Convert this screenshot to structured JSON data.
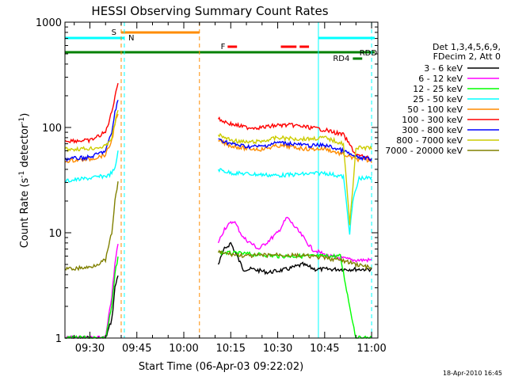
{
  "chart_data": {
    "type": "line",
    "title": "HESSI Observing Summary Count Rates",
    "xlabel": "Start Time (06-Apr-03 09:22:02)",
    "ylabel_main": "Count Rate (s",
    "ylabel_sup1": "-1",
    "ylabel_mid": " detector",
    "ylabel_sup2": "-1",
    "ylabel_end": ")",
    "yscale": "log",
    "ylim": [
      1,
      1000
    ],
    "xlim": [
      "09:22:02",
      "11:02:00"
    ],
    "x_ticks": [
      "09:30",
      "09:45",
      "10:00",
      "10:15",
      "10:30",
      "10:45",
      "11:00"
    ],
    "y_ticks": [
      "1",
      "10",
      "100",
      "1000"
    ],
    "legend_header": [
      "Det 1,3,4,5,6,9,",
      "FDecim 2, Att 0"
    ],
    "footer_date": "18-Apr-2010 16:45",
    "flags": [
      {
        "label": "S",
        "color": "#ff8c00",
        "start": "09:40",
        "end": "10:05"
      },
      {
        "label": "N",
        "color": "#00ffff",
        "start": "09:22",
        "end": "09:41"
      },
      {
        "label": "N",
        "color": "#00ffff",
        "start": "10:43",
        "end": "11:01"
      },
      {
        "label": "F",
        "color": "#ff0000",
        "segments": [
          [
            "10:14",
            "10:17"
          ],
          [
            "10:31",
            "10:36"
          ],
          [
            "10:37",
            "10:40"
          ]
        ]
      },
      {
        "label": "RDD",
        "color": "#008000",
        "start": "09:22",
        "end": "11:01"
      },
      {
        "label": "RD4",
        "color": "#008000",
        "start": "10:54",
        "end": "10:57"
      }
    ],
    "vlines": [
      {
        "time": "09:40",
        "color": "#ff8c00",
        "style": "dashed"
      },
      {
        "time": "10:05",
        "color": "#ff8c00",
        "style": "dashed"
      },
      {
        "time": "09:41",
        "color": "#00ffff",
        "style": "dashed"
      },
      {
        "time": "11:00",
        "color": "#00ffff",
        "style": "dashed"
      },
      {
        "time": "10:43",
        "color": "#00ffff",
        "style": "solid"
      }
    ],
    "series": [
      {
        "name": "3 - 6 keV",
        "color": "#000000",
        "x": [
          "09:22",
          "09:35",
          "09:37",
          "09:38",
          "09:39",
          "10:05",
          "10:11",
          "10:13",
          "10:15",
          "10:19",
          "10:22",
          "10:27",
          "10:33",
          "10:38",
          "10:42",
          "10:46",
          "10:54",
          "11:00"
        ],
        "y": [
          1.0,
          1.0,
          1.5,
          3.0,
          4.0,
          null,
          5.0,
          7.0,
          8.0,
          4.5,
          4.5,
          4.2,
          4.5,
          5.0,
          4.5,
          4.5,
          4.5,
          4.5
        ]
      },
      {
        "name": "6 - 12 keV",
        "color": "#ff00ff",
        "x": [
          "09:22",
          "09:35",
          "09:37",
          "09:38",
          "09:39",
          "10:05",
          "10:11",
          "10:13",
          "10:16",
          "10:19",
          "10:24",
          "10:30",
          "10:33",
          "10:37",
          "10:41",
          "10:46",
          "10:54",
          "11:00"
        ],
        "y": [
          1.0,
          1.0,
          2.5,
          5.0,
          8.0,
          null,
          8.0,
          11.0,
          13.0,
          9.0,
          7.0,
          10.0,
          14.0,
          10.0,
          7.0,
          6.0,
          5.5,
          5.5
        ]
      },
      {
        "name": "12 - 25 keV",
        "color": "#00ff00",
        "x": [
          "09:22",
          "09:35",
          "09:37",
          "09:38",
          "09:39",
          "10:05",
          "10:11",
          "10:20",
          "10:30",
          "10:40",
          "10:50",
          "10:53",
          "10:55",
          "11:00"
        ],
        "y": [
          1.0,
          1.0,
          2.0,
          4.0,
          6.0,
          null,
          6.5,
          6.3,
          6.0,
          6.0,
          6.0,
          2.0,
          1.0,
          1.0
        ]
      },
      {
        "name": "25 - 50 keV",
        "color": "#00ffff",
        "x": [
          "09:22",
          "09:30",
          "09:36",
          "09:38",
          "09:39",
          "10:05",
          "10:11",
          "10:15",
          "10:22",
          "10:30",
          "10:38",
          "10:45",
          "10:51",
          "10:53",
          "10:54",
          "10:56",
          "11:00"
        ],
        "y": [
          31,
          33,
          35,
          40,
          60,
          null,
          40,
          37,
          36,
          35,
          36,
          37,
          34,
          10,
          20,
          33,
          33
        ]
      },
      {
        "name": "50 - 100 keV",
        "color": "#ff8c00",
        "x": [
          "09:22",
          "09:30",
          "09:35",
          "09:37",
          "09:38",
          "09:39",
          "10:05",
          "10:11",
          "10:15",
          "10:20",
          "10:25",
          "10:30",
          "10:35",
          "10:40",
          "10:45",
          "10:51",
          "10:55",
          "11:00"
        ],
        "y": [
          48,
          50,
          55,
          75,
          110,
          130,
          null,
          75,
          67,
          63,
          62,
          67,
          65,
          62,
          63,
          55,
          50,
          48
        ]
      },
      {
        "name": "100 - 300 keV",
        "color": "#ff0000",
        "x": [
          "09:22",
          "09:30",
          "09:35",
          "09:37",
          "09:38",
          "09:39",
          "10:05",
          "10:11",
          "10:15",
          "10:20",
          "10:25",
          "10:30",
          "10:35",
          "10:40",
          "10:45",
          "10:51",
          "10:55",
          "11:00"
        ],
        "y": [
          75,
          75,
          90,
          140,
          200,
          270,
          null,
          120,
          108,
          100,
          100,
          105,
          105,
          100,
          95,
          85,
          55,
          50
        ]
      },
      {
        "name": "300 - 800 keV",
        "color": "#0000ff",
        "x": [
          "09:22",
          "09:30",
          "09:35",
          "09:37",
          "09:38",
          "09:39",
          "10:05",
          "10:11",
          "10:15",
          "10:20",
          "10:25",
          "10:30",
          "10:35",
          "10:40",
          "10:45",
          "10:51",
          "10:55",
          "11:00"
        ],
        "y": [
          50,
          52,
          60,
          90,
          140,
          180,
          null,
          78,
          70,
          66,
          66,
          72,
          70,
          67,
          68,
          60,
          52,
          50
        ]
      },
      {
        "name": "800 - 7000 keV",
        "color": "#cccc00",
        "x": [
          "09:22",
          "09:30",
          "09:35",
          "09:37",
          "09:38",
          "09:39",
          "10:05",
          "10:11",
          "10:15",
          "10:20",
          "10:25",
          "10:30",
          "10:35",
          "10:40",
          "10:45",
          "10:51",
          "10:53",
          "10:55",
          "11:00"
        ],
        "y": [
          62,
          63,
          66,
          80,
          110,
          150,
          null,
          85,
          76,
          72,
          74,
          80,
          78,
          78,
          80,
          70,
          12,
          64,
          64
        ]
      },
      {
        "name": "7000 - 20000 keV",
        "color": "#808000",
        "x": [
          "09:22",
          "09:30",
          "09:35",
          "09:37",
          "09:38",
          "09:39",
          "10:05",
          "10:11",
          "10:20",
          "10:30",
          "10:40",
          "10:50",
          "11:00"
        ],
        "y": [
          4.5,
          4.7,
          5.5,
          10.0,
          20.0,
          30.0,
          null,
          6.5,
          6.0,
          6.2,
          6.0,
          5.5,
          4.6
        ]
      }
    ]
  }
}
